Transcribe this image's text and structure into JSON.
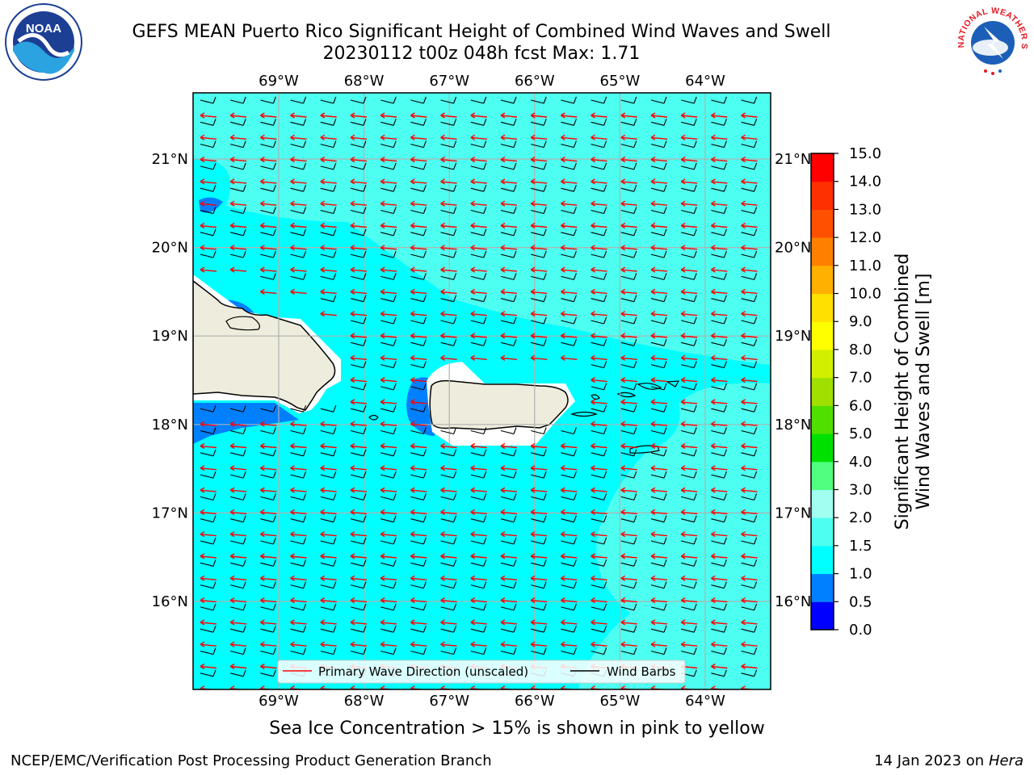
{
  "title": {
    "line1": "GEFS MEAN Puerto Rico Significant Height of Combined Wind Waves and Swell",
    "line2": "20230112 t00z 048h fcst   Max: 1.71"
  },
  "map": {
    "lon_labels": [
      "69°W",
      "68°W",
      "67°W",
      "66°W",
      "65°W",
      "64°W"
    ],
    "lat_labels": [
      "21°N",
      "20°N",
      "19°N",
      "18°N",
      "17°N",
      "16°N"
    ],
    "lon_range": [
      -70.0,
      -63.2
    ],
    "lat_range": [
      15.0,
      21.75
    ],
    "colors": {
      "land": "#eeecdc",
      "band_0_5_1_0": "#0080ff",
      "band_1_0_1_5": "#00ffff",
      "band_1_5_2_0": "#4dfff0",
      "coast": "#000000",
      "grid": "#b0b0b0",
      "wave_arrow": "#ff0000",
      "wind_barb": "#000000"
    }
  },
  "legend": {
    "wave_label": "Primary Wave Direction (unscaled)",
    "barb_label": "Wind Barbs"
  },
  "colorbar": {
    "label_line1": "Significant Height of Combined",
    "label_line2": "Wind Waves and Swell [m]",
    "ticks": [
      "0.0",
      "0.5",
      "1.0",
      "1.5",
      "2.0",
      "3.0",
      "4.0",
      "5.0",
      "6.0",
      "7.0",
      "8.0",
      "9.0",
      "10.0",
      "11.0",
      "12.0",
      "13.0",
      "14.0",
      "15.0"
    ],
    "colors": [
      "#0000ff",
      "#0080ff",
      "#00ffff",
      "#4dfff0",
      "#a0fff0",
      "#50ff80",
      "#00e000",
      "#50e000",
      "#a0e000",
      "#d0f000",
      "#ffff00",
      "#ffe000",
      "#ffb000",
      "#ff8000",
      "#ff5000",
      "#ff3000",
      "#ff0000"
    ]
  },
  "sea_ice_note": "Sea Ice Concentration > 15% is shown in pink to yellow",
  "footer": {
    "left": "NCEP/EMC/Verification Post Processing Product Generation Branch",
    "right_prefix": "14 Jan 2023 on ",
    "right_host": "Hera"
  },
  "logos": {
    "noaa_text": "NOAA",
    "nws_text": "NATIONAL WEATHER SERVICE"
  }
}
